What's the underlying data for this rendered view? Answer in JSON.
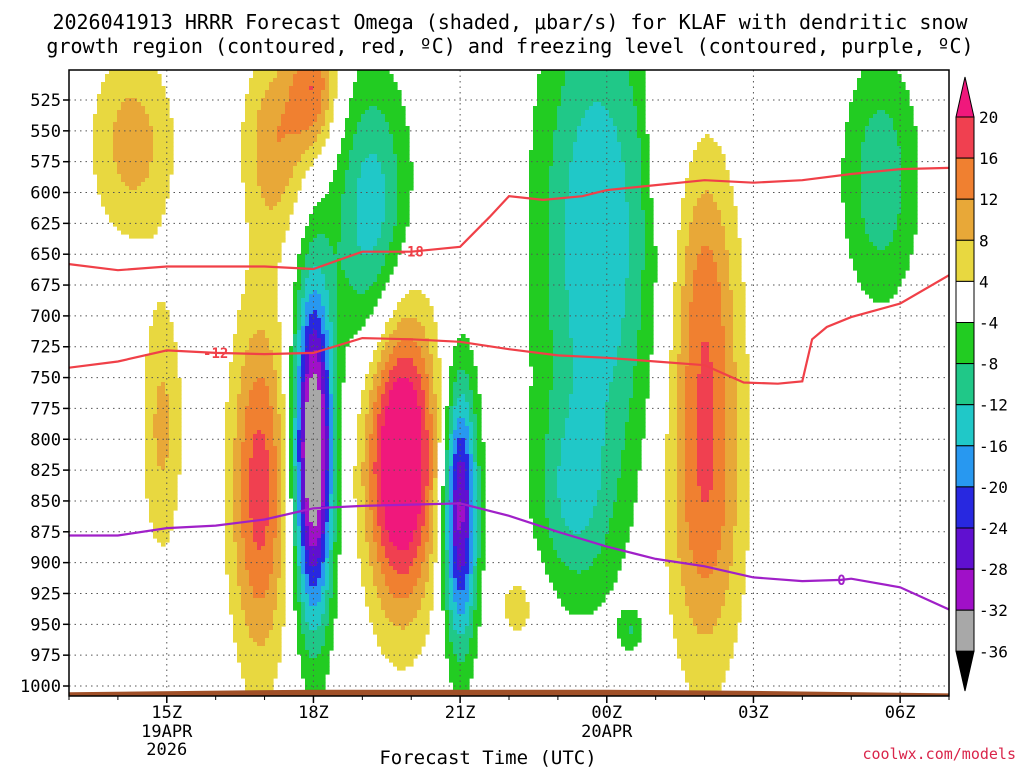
{
  "chart_data": {
    "type": "heatmap",
    "title_line1": "2026041913 HRRR Forecast Omega (shaded, μbar/s) for KLAF with dendritic snow",
    "title_line2": "growth region (contoured, red, ºC) and freezing level (contoured, purple, ºC)",
    "xlabel": "Forecast Time (UTC)",
    "credit": "coolwx.com/models",
    "x_range_hours": [
      13.0,
      31.0
    ],
    "y_range_hpa": [
      1010,
      510
    ],
    "x_ticks": [
      {
        "hour": 15,
        "label": "15Z",
        "sub1": "19APR",
        "sub2": "2026"
      },
      {
        "hour": 18,
        "label": "18Z",
        "sub1": "",
        "sub2": ""
      },
      {
        "hour": 21,
        "label": "21Z",
        "sub1": "",
        "sub2": ""
      },
      {
        "hour": 24,
        "label": "00Z",
        "sub1": "20APR",
        "sub2": ""
      },
      {
        "hour": 27,
        "label": "03Z",
        "sub1": "",
        "sub2": ""
      },
      {
        "hour": 30,
        "label": "06Z",
        "sub1": "",
        "sub2": ""
      }
    ],
    "y_ticks": [
      525,
      550,
      575,
      600,
      625,
      650,
      675,
      700,
      725,
      750,
      775,
      800,
      825,
      850,
      875,
      900,
      925,
      950,
      975,
      1000
    ],
    "colorbar": {
      "labels": [
        "20",
        "16",
        "12",
        "8",
        "4",
        "-4",
        "-8",
        "-12",
        "-16",
        "-20",
        "-24",
        "-28",
        "-32",
        "-36"
      ],
      "colors": [
        "#f04050",
        "#f08030",
        "#e8a838",
        "#e8d840",
        "#ffffff",
        "#22cc22",
        "#20c888",
        "#20c8c8",
        "#2898f0",
        "#2828e0",
        "#6010d0",
        "#a010c8",
        "#a8a8a8"
      ],
      "top_triangle_color": "#f0187c",
      "bottom_triangle_color": "#000000"
    },
    "omega_levels": [
      -36,
      -32,
      -28,
      -24,
      -20,
      -16,
      -12,
      -8,
      -4,
      4,
      8,
      12,
      16,
      20
    ],
    "omega_features": [
      {
        "name": "upper-left ascent lobe",
        "t": 14.3,
        "p": 560,
        "st": 0.6,
        "sp": 55,
        "amp": 10
      },
      {
        "name": "upper band 17Z",
        "t": 17.2,
        "p": 560,
        "st": 0.45,
        "sp": 55,
        "amp": 11
      },
      {
        "name": "top plume 18Z",
        "t": 18.0,
        "p": 515,
        "st": 0.35,
        "sp": 40,
        "amp": 15
      },
      {
        "name": "column 16.9Z",
        "t": 16.9,
        "p": 840,
        "st": 0.42,
        "sp": 100,
        "amp": 18
      },
      {
        "name": "lower-left lobe",
        "t": 14.9,
        "p": 790,
        "st": 0.3,
        "sp": 75,
        "amp": 9
      },
      {
        "name": "sinking core 19.8Z",
        "t": 19.8,
        "p": 815,
        "st": 0.5,
        "sp": 85,
        "amp": 30
      },
      {
        "name": "rising core 18Z",
        "t": 18.0,
        "p": 810,
        "st": 0.28,
        "sp": 95,
        "amp": -40
      },
      {
        "name": "rising core 21Z",
        "t": 21.0,
        "p": 860,
        "st": 0.25,
        "sp": 75,
        "amp": -30
      },
      {
        "name": "green ridge 19Z",
        "t": 19.2,
        "p": 620,
        "st": 0.55,
        "sp": 80,
        "amp": -15
      },
      {
        "name": "large sinking band 00Z",
        "t": 23.8,
        "p": 640,
        "st": 0.85,
        "sp": 150,
        "amp": -16
      },
      {
        "name": "green tail 23Z",
        "t": 23.3,
        "p": 850,
        "st": 0.55,
        "sp": 55,
        "amp": -9
      },
      {
        "name": "lower band 02Z",
        "t": 26.0,
        "p": 830,
        "st": 0.55,
        "sp": 110,
        "amp": 16
      },
      {
        "name": "upper band 02Z",
        "t": 26.0,
        "p": 660,
        "st": 0.45,
        "sp": 80,
        "amp": 9
      },
      {
        "name": "right green band",
        "t": 29.6,
        "p": 590,
        "st": 0.55,
        "sp": 70,
        "amp": -11
      },
      {
        "name": "thin yellow strip 01Z",
        "t": 25.0,
        "p": 545,
        "st": 0.12,
        "sp": 45,
        "amp": 7
      },
      {
        "name": "small yellow blob 22Z",
        "t": 22.2,
        "p": 935,
        "st": 0.35,
        "sp": 25,
        "amp": 6
      },
      {
        "name": "small green blob 00Z",
        "t": 24.5,
        "p": 955,
        "st": 0.18,
        "sp": 12,
        "amp": -7
      }
    ],
    "contours": [
      {
        "label": "-18",
        "color": "#f04048",
        "label_at_hour": 20.0,
        "points": [
          [
            13,
            658
          ],
          [
            14,
            663
          ],
          [
            15,
            660
          ],
          [
            16,
            660
          ],
          [
            17,
            660
          ],
          [
            18,
            662
          ],
          [
            19,
            648
          ],
          [
            20,
            648
          ],
          [
            21,
            644
          ],
          [
            21.6,
            620
          ],
          [
            22,
            603
          ],
          [
            22.7,
            606
          ],
          [
            23.5,
            603
          ],
          [
            24,
            598
          ],
          [
            25,
            594
          ],
          [
            26,
            590
          ],
          [
            27,
            592
          ],
          [
            28,
            590
          ],
          [
            29,
            585
          ],
          [
            30,
            581
          ],
          [
            31,
            580
          ]
        ]
      },
      {
        "label": "-12",
        "color": "#f04048",
        "label_at_hour": 16.0,
        "points": [
          [
            13,
            742
          ],
          [
            14,
            737
          ],
          [
            15,
            728
          ],
          [
            16,
            730
          ],
          [
            17,
            731
          ],
          [
            18,
            730
          ],
          [
            19,
            718
          ],
          [
            20,
            719
          ],
          [
            21,
            721
          ],
          [
            22,
            727
          ],
          [
            23,
            732
          ],
          [
            24,
            734
          ],
          [
            25,
            737
          ],
          [
            26,
            740
          ],
          [
            26.8,
            754
          ],
          [
            27.5,
            755
          ],
          [
            28,
            753
          ],
          [
            28.2,
            719
          ],
          [
            28.5,
            709
          ],
          [
            29,
            701
          ],
          [
            30,
            690
          ],
          [
            31,
            667
          ]
        ]
      },
      {
        "label": "0",
        "color": "#a020c8",
        "label_at_hour": 28.8,
        "points": [
          [
            13,
            878
          ],
          [
            14,
            878
          ],
          [
            15,
            872
          ],
          [
            16,
            870
          ],
          [
            17,
            865
          ],
          [
            18,
            856
          ],
          [
            19,
            854
          ],
          [
            20,
            853
          ],
          [
            21,
            852
          ],
          [
            22,
            862
          ],
          [
            23,
            875
          ],
          [
            24,
            887
          ],
          [
            25,
            897
          ],
          [
            26,
            903
          ],
          [
            27,
            912
          ],
          [
            28,
            915
          ],
          [
            28.8,
            914
          ],
          [
            29,
            913
          ],
          [
            30,
            920
          ],
          [
            31,
            938
          ]
        ]
      }
    ],
    "ground": {
      "color": "#a05028",
      "bottom_hpa": 1010,
      "top_hpa_at_hours": [
        [
          13,
          1005
        ],
        [
          18,
          1003
        ],
        [
          24,
          1003
        ],
        [
          27,
          1004
        ],
        [
          31,
          1006
        ]
      ]
    }
  }
}
